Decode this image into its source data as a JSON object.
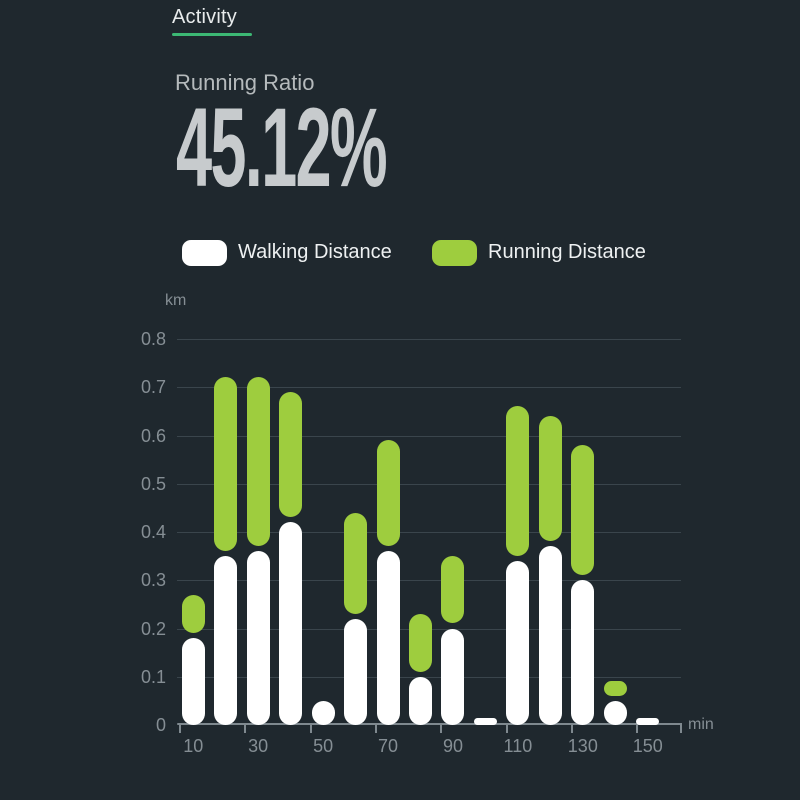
{
  "header": {
    "title": "Activity"
  },
  "metric": {
    "label": "Running Ratio",
    "value": "45.12%"
  },
  "legend": {
    "walking": "Walking Distance",
    "running": "Running Distance"
  },
  "chart_data": {
    "type": "bar",
    "stacked": true,
    "x": [
      10,
      20,
      30,
      40,
      50,
      60,
      70,
      80,
      90,
      100,
      110,
      120,
      130,
      140,
      150
    ],
    "series": [
      {
        "name": "Walking Distance",
        "color": "#ffffff",
        "values": [
          0.18,
          0.35,
          0.36,
          0.42,
          0.05,
          0.22,
          0.36,
          0.1,
          0.2,
          0.015,
          0.34,
          0.37,
          0.3,
          0.05,
          0.015
        ]
      },
      {
        "name": "Running Distance",
        "color": "#9ecd3e",
        "values": [
          0.08,
          0.36,
          0.35,
          0.26,
          0,
          0.21,
          0.22,
          0.12,
          0.14,
          0,
          0.31,
          0.26,
          0.27,
          0.03,
          0
        ]
      }
    ],
    "y_ticks": [
      0,
      0.1,
      0.2,
      0.3,
      0.4,
      0.5,
      0.6,
      0.7,
      0.8
    ],
    "x_tick_labels": [
      "10",
      "30",
      "50",
      "70",
      "90",
      "110",
      "130",
      "150"
    ],
    "y_unit": "km",
    "x_unit": "min",
    "ylim": [
      0,
      0.8
    ],
    "grid": true,
    "legend_position": "top"
  },
  "colors": {
    "background": "#1f282e",
    "tab_text": "#e8ebec",
    "tab_underline": "#3cb874",
    "metric_label_text": "#b5babc",
    "metric_value_text": "#c7cbcd",
    "legend_text": "#eef1f2",
    "grid_line": "#3a454c",
    "axis_line": "#7f898f",
    "tick_text": "#858e94",
    "walking_bar": "#ffffff",
    "running_bar": "#9ecd3e"
  }
}
